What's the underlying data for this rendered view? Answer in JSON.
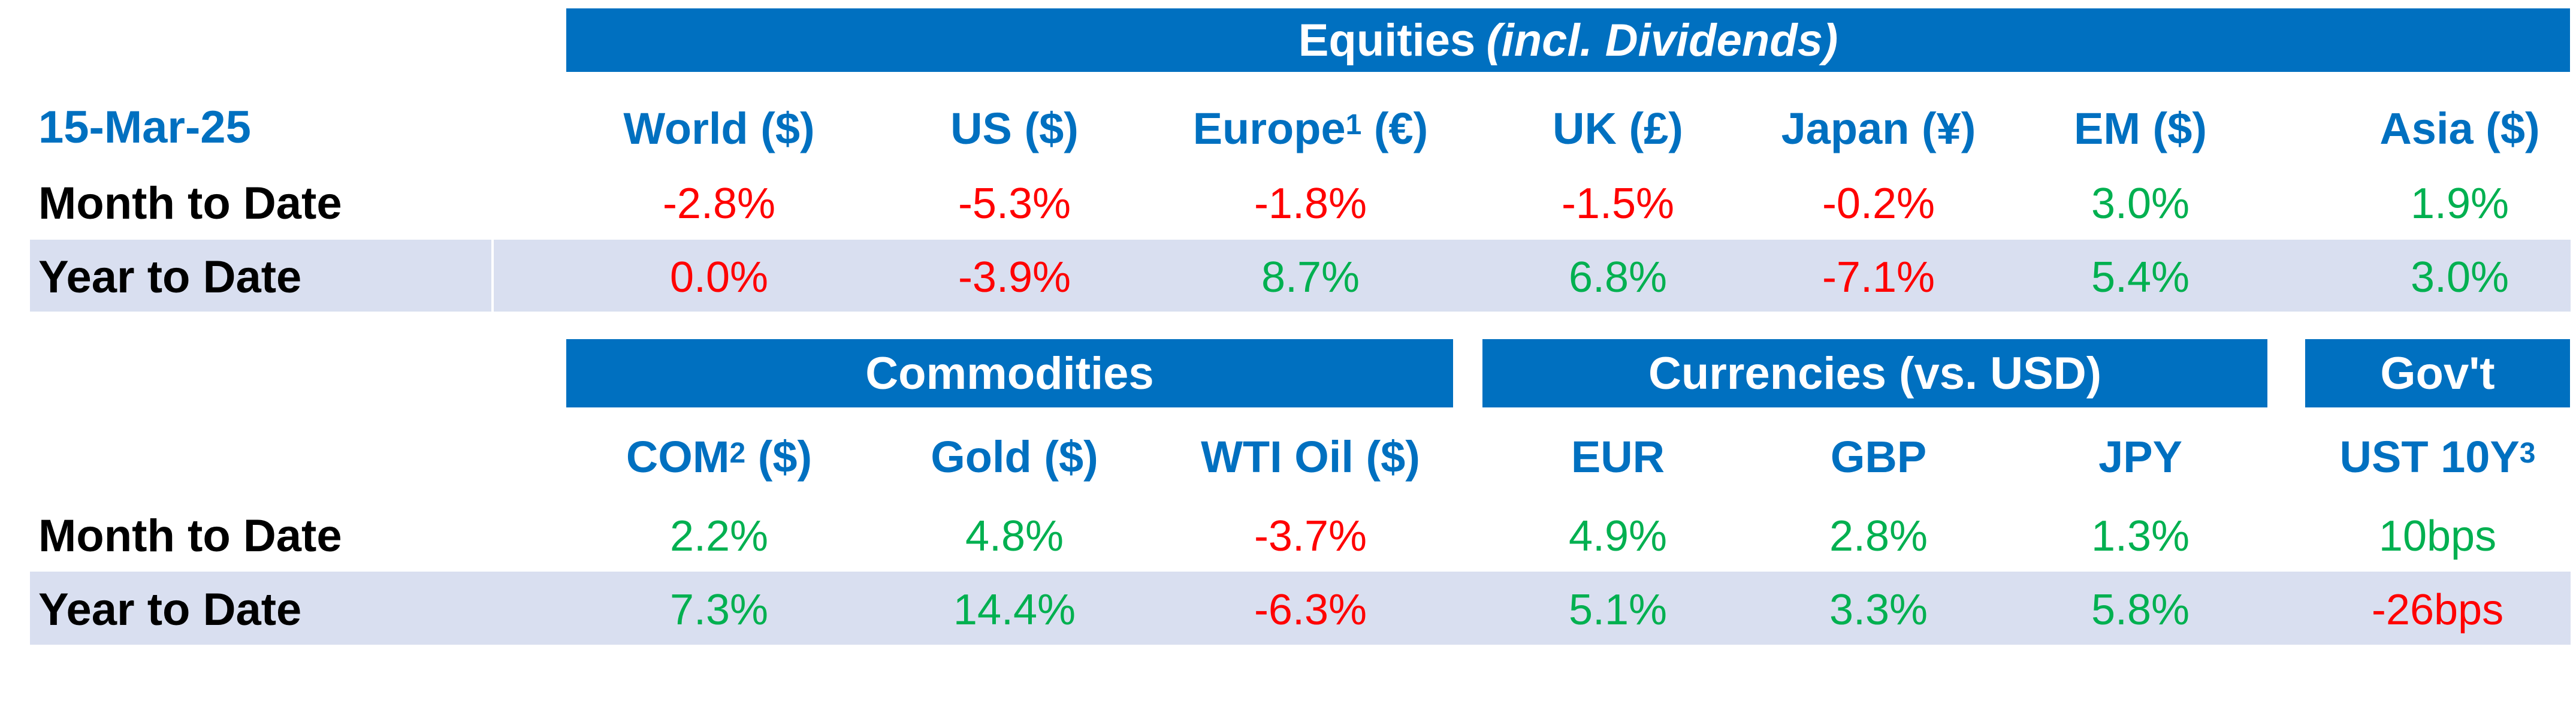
{
  "date": "15-Mar-25",
  "colors": {
    "header_blue": "#0070C0",
    "band_gray": "#D9DFF0",
    "negative": "#FF0000",
    "positive": "#00B050"
  },
  "equities": {
    "title_main": "Equities",
    "title_italic": "(incl. Dividends)",
    "columns": [
      {
        "label": "World ($)",
        "sup": ""
      },
      {
        "label": "US ($)",
        "sup": ""
      },
      {
        "label": "Europe",
        "sup": "1",
        "suffix": " (€)"
      },
      {
        "label": "UK (£)",
        "sup": ""
      },
      {
        "label": "Japan (¥)",
        "sup": ""
      },
      {
        "label": "EM ($)",
        "sup": ""
      },
      {
        "label": "Asia ($)",
        "sup": ""
      }
    ],
    "rows": [
      {
        "label": "Month to Date",
        "values": [
          "-2.8%",
          "-5.3%",
          "-1.8%",
          "-1.5%",
          "-0.2%",
          "3.0%",
          "1.9%"
        ],
        "signs": [
          "neg",
          "neg",
          "neg",
          "neg",
          "neg",
          "pos",
          "pos"
        ]
      },
      {
        "label": "Year to Date",
        "values": [
          "0.0%",
          "-3.9%",
          "8.7%",
          "6.8%",
          "-7.1%",
          "5.4%",
          "3.0%"
        ],
        "signs": [
          "neg",
          "neg",
          "pos",
          "pos",
          "neg",
          "pos",
          "pos"
        ]
      }
    ]
  },
  "groups": {
    "commodities": "Commodities",
    "currencies": "Currencies (vs. USD)",
    "govt": "Gov't"
  },
  "lower": {
    "columns": [
      {
        "label": "COM",
        "sup": "2",
        "suffix": " ($)"
      },
      {
        "label": "Gold ($)",
        "sup": ""
      },
      {
        "label": "WTI Oil ($)",
        "sup": ""
      },
      {
        "label": "EUR",
        "sup": ""
      },
      {
        "label": "GBP",
        "sup": ""
      },
      {
        "label": "JPY",
        "sup": ""
      },
      {
        "label": "UST 10Y",
        "sup": "3"
      }
    ],
    "rows": [
      {
        "label": "Month to Date",
        "values": [
          "2.2%",
          "4.8%",
          "-3.7%",
          "4.9%",
          "2.8%",
          "1.3%",
          "10bps"
        ],
        "signs": [
          "pos",
          "pos",
          "neg",
          "pos",
          "pos",
          "pos",
          "pos"
        ]
      },
      {
        "label": "Year to Date",
        "values": [
          "7.3%",
          "14.4%",
          "-6.3%",
          "5.1%",
          "3.3%",
          "5.8%",
          "-26bps"
        ],
        "signs": [
          "pos",
          "pos",
          "neg",
          "pos",
          "pos",
          "pos",
          "neg"
        ]
      }
    ]
  }
}
